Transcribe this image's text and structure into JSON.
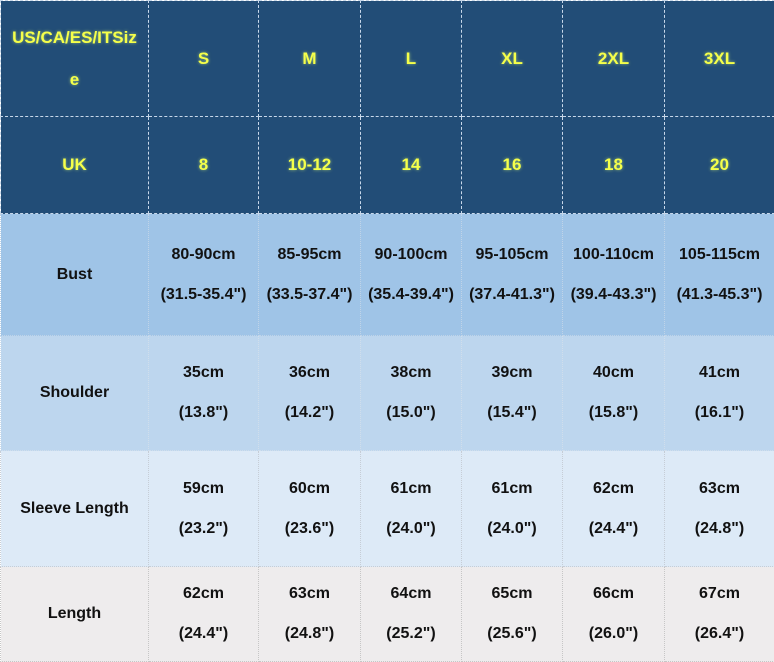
{
  "header_rows": [
    {
      "label_line1": "US/CA/ES/ITSiz",
      "label_line2": "e",
      "values": [
        "S",
        "M",
        "L",
        "XL",
        "2XL",
        "3XL"
      ]
    },
    {
      "label": "UK",
      "values": [
        "8",
        "10-12",
        "14",
        "16",
        "18",
        "20"
      ]
    }
  ],
  "rows": [
    {
      "label": "Bust",
      "cm": [
        "80-90cm",
        "85-95cm",
        "90-100cm",
        "95-105cm",
        "100-110cm",
        "105-115cm"
      ],
      "inch": [
        "(31.5-35.4\")",
        "(33.5-37.4\")",
        "(35.4-39.4\")",
        "(37.4-41.3\")",
        "(39.4-43.3\")",
        "(41.3-45.3\")"
      ]
    },
    {
      "label": "Shoulder",
      "cm": [
        "35cm",
        "36cm",
        "38cm",
        "39cm",
        "40cm",
        "41cm"
      ],
      "inch": [
        "(13.8\")",
        "(14.2\")",
        "(15.0\")",
        "(15.4\")",
        "(15.8\")",
        "(16.1\")"
      ]
    },
    {
      "label": "Sleeve Length",
      "cm": [
        "59cm",
        "60cm",
        "61cm",
        "61cm",
        "62cm",
        "63cm"
      ],
      "inch": [
        "(23.2\")",
        "(23.6\")",
        "(24.0\")",
        "(24.0\")",
        "(24.4\")",
        "(24.8\")"
      ]
    },
    {
      "label": "Length",
      "cm": [
        "62cm",
        "63cm",
        "64cm",
        "65cm",
        "66cm",
        "67cm"
      ],
      "inch": [
        "(24.4\")",
        "(24.8\")",
        "(25.2\")",
        "(25.6\")",
        "(26.0\")",
        "(26.4\")"
      ]
    }
  ],
  "colors": {
    "header_bg": "#224d77",
    "header_text": "#f5ff4a",
    "bust_bg": "#9fc4e7",
    "shoulder_bg": "#bdd6ee",
    "sleeve_bg": "#ddeaf7",
    "length_bg": "#eeeced"
  }
}
